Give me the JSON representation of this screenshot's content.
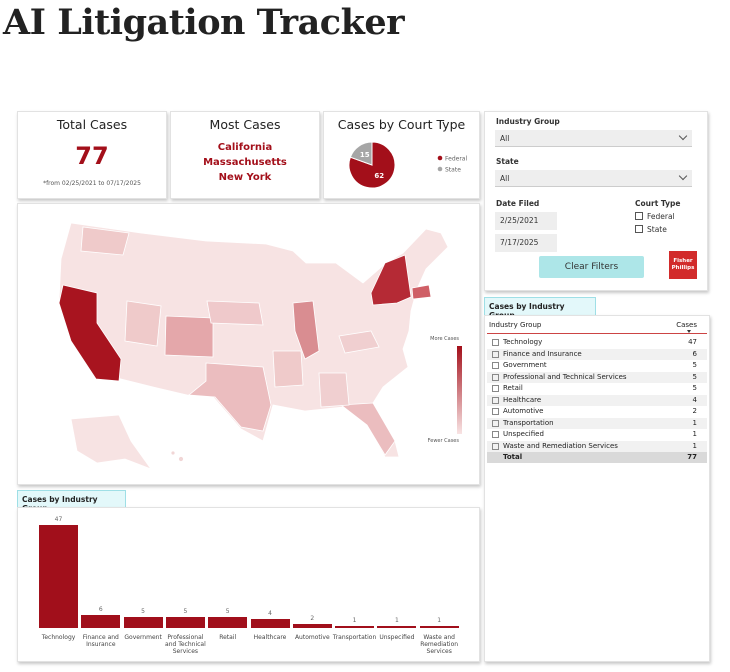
{
  "title": "AI Litigation Tracker",
  "cards": {
    "total": {
      "title": "Total Cases",
      "value": 77,
      "note": "*from 02/25/2021 to 07/17/2025"
    },
    "most": {
      "title": "Most Cases",
      "states": [
        "California",
        "Massachusetts",
        "New York"
      ]
    }
  },
  "chart_data": [
    {
      "type": "pie",
      "title": "Cases by Court Type",
      "categories": [
        "Federal",
        "State"
      ],
      "values": [
        62,
        15
      ],
      "colors": [
        "#a30f1a",
        "#a6a6a6"
      ]
    },
    {
      "type": "bar",
      "title": "Cases by Industry Group",
      "color": "#a10f1b",
      "categories": [
        "Technology",
        "Finance and Insurance",
        "Government",
        "Professional and Technical Services",
        "Retail",
        "Healthcare",
        "Automotive",
        "Transportation",
        "Unspecified",
        "Waste and Remediation Services"
      ],
      "values": [
        47,
        6,
        5,
        5,
        5,
        4,
        2,
        1,
        1,
        1
      ]
    }
  ],
  "map": {
    "legend_high": "More Cases",
    "legend_low": "Fewer Cases"
  },
  "filters": {
    "industry": {
      "label": "Industry Group",
      "value": "All"
    },
    "state": {
      "label": "State",
      "value": "All"
    },
    "date": {
      "label": "Date Filed",
      "from": "2/25/2021",
      "to": "7/17/2025"
    },
    "court": {
      "label": "Court Type",
      "options": [
        "Federal",
        "State"
      ]
    },
    "button": "Clear Filters"
  },
  "logo": "Fisher Phillips",
  "table": {
    "tab": "Cases by Industry Group",
    "columns": [
      "Industry Group",
      "Cases"
    ],
    "rows": [
      [
        "Technology",
        47
      ],
      [
        "Finance and Insurance",
        6
      ],
      [
        "Government",
        5
      ],
      [
        "Professional and Technical Services",
        5
      ],
      [
        "Retail",
        5
      ],
      [
        "Healthcare",
        4
      ],
      [
        "Automotive",
        2
      ],
      [
        "Transportation",
        1
      ],
      [
        "Unspecified",
        1
      ],
      [
        "Waste and Remediation Services",
        1
      ]
    ],
    "total": [
      "Total",
      77
    ]
  }
}
